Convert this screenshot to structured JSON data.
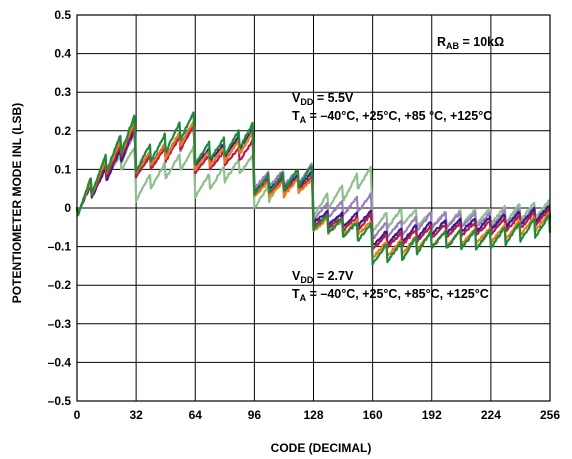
{
  "chart_data": {
    "type": "line",
    "xlabel": "CODE (DECIMAL)",
    "ylabel": "POTENTIOMETER MODE INL (LSB)",
    "xlim": [
      0,
      256
    ],
    "ylim": [
      -0.5,
      0.5
    ],
    "xticks": [
      "0",
      "32",
      "64",
      "96",
      "128",
      "160",
      "192",
      "224",
      "256"
    ],
    "xtick_values": [
      0,
      32,
      64,
      96,
      128,
      160,
      192,
      224,
      256
    ],
    "yticks": [
      "0.5",
      "0.4",
      "0.3",
      "0.2",
      "0.1",
      "0",
      "–0.1",
      "–0.2",
      "–0.3",
      "–0.4",
      "–0.5"
    ],
    "ytick_values": [
      0.5,
      0.4,
      0.3,
      0.2,
      0.1,
      0,
      -0.1,
      -0.2,
      -0.3,
      -0.4,
      -0.5
    ],
    "grid": true,
    "annotations": {
      "rab_main": "R",
      "rab_sub": "AB",
      "rab_rest": " = 10kΩ",
      "vdd_hi_main": "V",
      "vdd_hi_sub": "DD",
      "vdd_hi_rest": " = 5.5V",
      "ta_hi_main": "T",
      "ta_hi_sub": "A",
      "ta_hi_rest": " = –40°C, +25°C, +85   °C, +125°C",
      "vdd_lo_main": "V",
      "vdd_lo_sub": "DD",
      "vdd_lo_rest": " = 2.7V",
      "ta_lo_main": "T",
      "ta_lo_sub": "A",
      "ta_lo_rest": " = –40°C, +25°C, +85°C, +125°C"
    },
    "series": [
      {
        "color": "#8fbf8f",
        "step": 0.02,
        "amp": 0.022,
        "seed": 1,
        "x": [
          0,
          16,
          24,
          31,
          32,
          48,
          56,
          63,
          64,
          80,
          88,
          95,
          96,
          112,
          120,
          127,
          128,
          144,
          152,
          159,
          160,
          176,
          192,
          224,
          256
        ],
        "y": [
          0,
          0.1,
          0.12,
          0.14,
          0.04,
          0.1,
          0.12,
          0.14,
          0.05,
          0.09,
          0.11,
          0.12,
          0.02,
          0.06,
          0.08,
          0.1,
          0.0,
          0.04,
          0.07,
          0.09,
          -0.04,
          -0.02,
          -0.03,
          -0.02,
          0.0
        ]
      },
      {
        "color": "#9b7fbf",
        "step": 0.02,
        "amp": 0.02,
        "seed": 2,
        "x": [
          0,
          16,
          24,
          31,
          32,
          48,
          56,
          63,
          64,
          80,
          88,
          95,
          96,
          112,
          120,
          127,
          128,
          144,
          152,
          159,
          160,
          176,
          192,
          224,
          256
        ],
        "y": [
          0,
          0.1,
          0.14,
          0.18,
          0.1,
          0.15,
          0.17,
          0.2,
          0.12,
          0.14,
          0.16,
          0.18,
          0.07,
          0.08,
          0.08,
          0.1,
          -0.01,
          0.0,
          0.01,
          0.02,
          -0.06,
          -0.05,
          -0.03,
          -0.03,
          -0.01
        ]
      },
      {
        "color": "#3a1a8c",
        "step": 0.02,
        "amp": 0.018,
        "seed": 3,
        "x": [
          0,
          16,
          24,
          31,
          32,
          48,
          56,
          63,
          64,
          80,
          88,
          95,
          96,
          112,
          120,
          127,
          128,
          144,
          152,
          159,
          160,
          176,
          192,
          224,
          256
        ],
        "y": [
          0,
          0.09,
          0.14,
          0.19,
          0.11,
          0.15,
          0.18,
          0.21,
          0.13,
          0.15,
          0.17,
          0.19,
          0.06,
          0.07,
          0.07,
          0.08,
          -0.02,
          -0.03,
          -0.03,
          -0.02,
          -0.08,
          -0.07,
          -0.05,
          -0.04,
          -0.01
        ]
      },
      {
        "color": "#b01e4a",
        "step": 0.02,
        "amp": 0.018,
        "seed": 4,
        "x": [
          0,
          16,
          24,
          31,
          32,
          48,
          56,
          63,
          64,
          80,
          88,
          95,
          96,
          112,
          120,
          127,
          128,
          144,
          152,
          159,
          160,
          176,
          192,
          224,
          256
        ],
        "y": [
          0,
          0.1,
          0.15,
          0.2,
          0.1,
          0.14,
          0.17,
          0.2,
          0.11,
          0.13,
          0.14,
          0.16,
          0.05,
          0.06,
          0.06,
          0.07,
          -0.03,
          -0.04,
          -0.04,
          -0.03,
          -0.09,
          -0.08,
          -0.06,
          -0.05,
          -0.02
        ]
      },
      {
        "color": "#f07a1a",
        "step": 0.02,
        "amp": 0.02,
        "seed": 5,
        "x": [
          0,
          16,
          24,
          31,
          32,
          48,
          56,
          63,
          64,
          80,
          88,
          95,
          96,
          112,
          120,
          127,
          128,
          144,
          152,
          159,
          160,
          176,
          192,
          224,
          256
        ],
        "y": [
          0,
          0.11,
          0.16,
          0.21,
          0.11,
          0.15,
          0.18,
          0.21,
          0.12,
          0.14,
          0.16,
          0.18,
          0.05,
          0.05,
          0.06,
          0.06,
          -0.04,
          -0.05,
          -0.05,
          -0.05,
          -0.11,
          -0.1,
          -0.08,
          -0.07,
          -0.03
        ]
      },
      {
        "color": "#1e8a3a",
        "step": 0.02,
        "amp": 0.025,
        "seed": 6,
        "x": [
          0,
          16,
          24,
          31,
          32,
          48,
          56,
          63,
          64,
          80,
          88,
          95,
          96,
          112,
          120,
          127,
          128,
          144,
          152,
          159,
          160,
          176,
          192,
          224,
          256
        ],
        "y": [
          0,
          0.12,
          0.17,
          0.22,
          0.12,
          0.17,
          0.2,
          0.23,
          0.14,
          0.16,
          0.18,
          0.2,
          0.06,
          0.07,
          0.08,
          0.09,
          -0.03,
          -0.05,
          -0.06,
          -0.06,
          -0.12,
          -0.11,
          -0.08,
          -0.08,
          -0.04
        ]
      }
    ]
  }
}
